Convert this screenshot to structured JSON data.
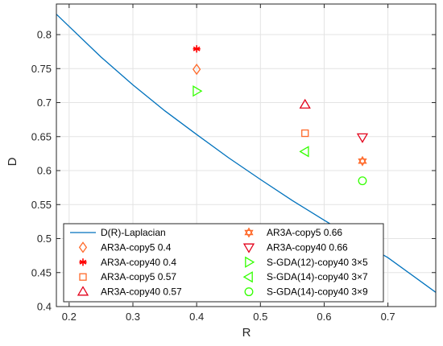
{
  "chart_data": {
    "type": "scatter",
    "xlabel": "R",
    "ylabel": "D",
    "xlim": [
      0.18,
      0.775
    ],
    "ylim": [
      0.4,
      0.845
    ],
    "x_ticks": [
      "0.2",
      "0.3",
      "0.4",
      "0.5",
      "0.6",
      "0.7"
    ],
    "y_ticks": [
      "0.4",
      "0.45",
      "0.5",
      "0.55",
      "0.6",
      "0.65",
      "0.7",
      "0.75",
      "0.8"
    ],
    "grid": true,
    "legend_position": "bottom-left",
    "curve": {
      "name": "D(R)-Laplacian",
      "color": "#0072BD",
      "x": [
        0.18,
        0.25,
        0.3,
        0.35,
        0.4,
        0.45,
        0.5,
        0.55,
        0.6,
        0.65,
        0.7,
        0.775
      ],
      "y": [
        0.83,
        0.767,
        0.726,
        0.688,
        0.653,
        0.619,
        0.587,
        0.556,
        0.527,
        0.499,
        0.472,
        0.421
      ]
    },
    "series": [
      {
        "name": "AR3A-copy5 0.4",
        "marker": "diamond",
        "color": "#FF6929",
        "x": [
          0.4
        ],
        "y": [
          0.749
        ]
      },
      {
        "name": "AR3A-copy40 0.4",
        "marker": "asterisk",
        "color": "#FF0000",
        "x": [
          0.4
        ],
        "y": [
          0.779
        ]
      },
      {
        "name": "AR3A-copy5 0.57",
        "marker": "square",
        "color": "#FF6929",
        "x": [
          0.57
        ],
        "y": [
          0.655
        ]
      },
      {
        "name": "AR3A-copy40 0.57",
        "marker": "triangle-up",
        "color": "#E3001A",
        "x": [
          0.57
        ],
        "y": [
          0.697
        ]
      },
      {
        "name": "AR3A-copy5 0.66",
        "marker": "hexagram",
        "color": "#FF6929",
        "x": [
          0.66
        ],
        "y": [
          0.614
        ]
      },
      {
        "name": "AR3A-copy40 0.66",
        "marker": "triangle-down",
        "color": "#E3001A",
        "x": [
          0.66
        ],
        "y": [
          0.649
        ]
      },
      {
        "name": "S-GDA(12)-copy40 3×5",
        "marker": "triangle-right",
        "color": "#33FF00",
        "x": [
          0.4
        ],
        "y": [
          0.717
        ]
      },
      {
        "name": "S-GDA(14)-copy40 3×7",
        "marker": "triangle-left",
        "color": "#33FF00",
        "x": [
          0.57
        ],
        "y": [
          0.628
        ]
      },
      {
        "name": "S-GDA(14)-copy40 3×9",
        "marker": "circle",
        "color": "#33FF00",
        "x": [
          0.66
        ],
        "y": [
          0.585
        ]
      }
    ]
  }
}
